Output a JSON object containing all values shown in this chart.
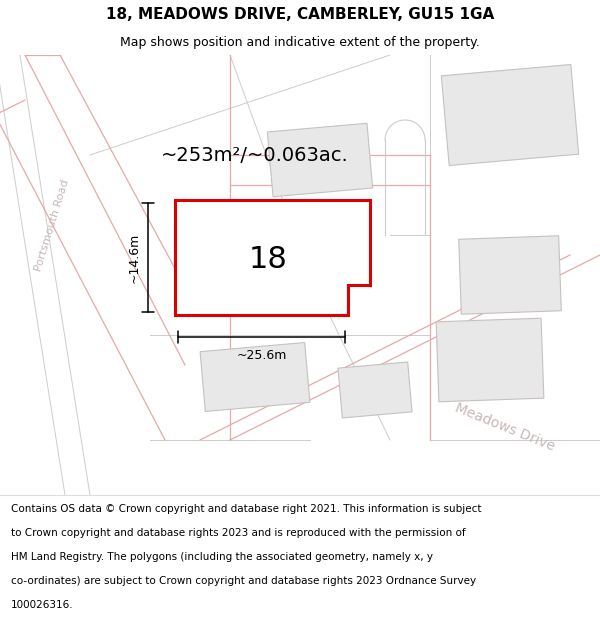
{
  "title": "18, MEADOWS DRIVE, CAMBERLEY, GU15 1GA",
  "subtitle": "Map shows position and indicative extent of the property.",
  "footer_lines": [
    "Contains OS data © Crown copyright and database right 2021. This information is subject",
    "to Crown copyright and database rights 2023 and is reproduced with the permission of",
    "HM Land Registry. The polygons (including the associated geometry, namely x, y",
    "co-ordinates) are subject to Crown copyright and database rights 2023 Ordnance Survey",
    "100026316."
  ],
  "area_label": "~253m²/~0.063ac.",
  "width_label": "~25.6m",
  "height_label": "~14.6m",
  "number_label": "18",
  "map_bg": "#f9f7f7",
  "plot_border": "#dd0000",
  "road_color": "#f0c0c0",
  "road_line_color": "#e8a8a8",
  "building_color": "#e8e8e8",
  "building_border": "#c8c0c0",
  "road_label_color": "#c8b8b8",
  "grey_line_color": "#cccccc",
  "title_fontsize": 11,
  "subtitle_fontsize": 9,
  "footer_fontsize": 7.5,
  "area_fontsize": 14,
  "number_fontsize": 22,
  "dim_fontsize": 9,
  "road_label_fontsize": 8,
  "meadows_fontsize": 10
}
